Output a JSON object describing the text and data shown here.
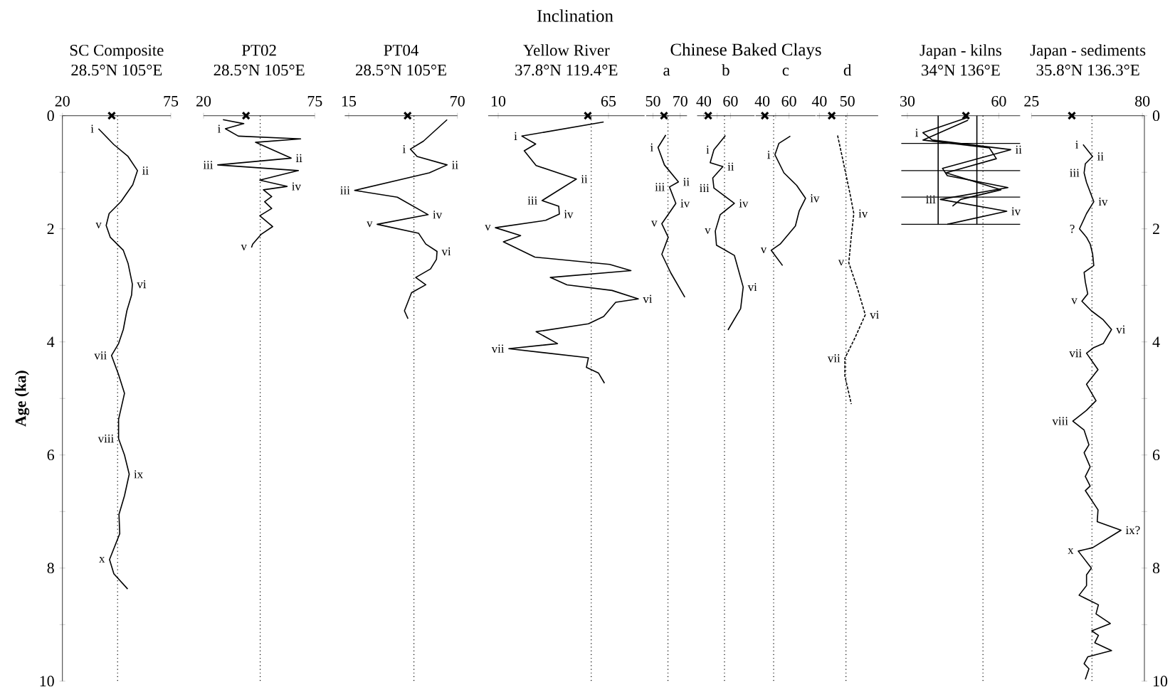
{
  "chart_data": [
    {
      "type": "line",
      "orientation": "horizontal",
      "title": "SC Composite",
      "subtitle": "28.5°N 105°E",
      "ylabel": "Age (ka)",
      "xlim": [
        20,
        75
      ],
      "xticks": [
        20,
        75
      ],
      "ylim": [
        10,
        0
      ],
      "yticks": [
        0,
        {
          "value": 1,
          "label": null
        },
        2,
        {
          "value": 3,
          "label": null
        },
        4,
        {
          "value": 5,
          "label": null
        },
        6,
        {
          "value": 7,
          "label": null
        },
        8,
        {
          "value": 9,
          "label": null
        },
        10
      ],
      "ref_lines": [
        {
          "axis": "x",
          "value": 48,
          "line_style": "dotted"
        }
      ],
      "annotations": [
        "Inclination",
        {
          "text": "i",
          "x": 38.3,
          "y": 0.23
        },
        {
          "text": "ii",
          "x": 58.1,
          "y": 0.97
        },
        {
          "text": "v",
          "x": 42.2,
          "y": 1.94
        },
        {
          "text": "vi",
          "x": 55.5,
          "y": 2.98
        },
        {
          "text": "vii",
          "x": 44.9,
          "y": 4.24
        },
        {
          "text": "viii",
          "x": 48.5,
          "y": 5.71
        },
        {
          "text": "ix",
          "x": 53.9,
          "y": 6.34
        },
        {
          "text": "x",
          "x": 43.9,
          "y": 7.85
        }
      ],
      "series": [
        {
          "color": "#000000",
          "x": [
            0.23,
            0.51,
            0.72,
            0.97,
            1.22,
            1.52,
            1.73,
            1.94,
            2.15,
            2.38,
            2.61,
            2.98,
            3.17,
            3.45,
            3.78,
            4.03,
            4.24,
            4.58,
            4.91,
            5.37,
            5.71,
            6.0,
            6.34,
            6.72,
            7.05,
            7.39,
            7.85,
            8.1,
            8.37
          ],
          "values": [
            38.3,
            46.1,
            53.3,
            58.1,
            55.7,
            49.7,
            43.7,
            42.2,
            44.3,
            50.9,
            53.3,
            55.5,
            55.1,
            52.7,
            50.9,
            48.5,
            44.9,
            48.5,
            51.5,
            48.5,
            48.5,
            51.5,
            53.9,
            51.5,
            48.7,
            49.1,
            43.9,
            46.1,
            53.1
          ]
        },
        {
          "type": "scatter",
          "marker": "cross",
          "color": "#000000",
          "x": [
            0
          ],
          "values": [
            45
          ]
        }
      ]
    },
    {
      "type": "line",
      "orientation": "horizontal",
      "title": "PT02",
      "subtitle": "28.5°N 105°E",
      "xlim": [
        20,
        75
      ],
      "xticks": [
        20,
        75
      ],
      "ylim": [
        10,
        0
      ],
      "tick_labels": "x",
      "ref_lines": [
        {
          "axis": "x",
          "value": 48,
          "line_style": "dotted"
        }
      ],
      "annotations": [
        {
          "text": "i",
          "x": 30.8,
          "y": 0.23
        },
        {
          "text": "ii",
          "x": 63.3,
          "y": 0.75
        },
        {
          "text": "iii",
          "x": 27.0,
          "y": 0.87
        },
        {
          "text": "iv",
          "x": 61.3,
          "y": 1.25
        },
        {
          "text": "v",
          "x": 43.7,
          "y": 2.33
        }
      ],
      "series": [
        {
          "color": "#000000",
          "x": [
            0.07,
            0.14,
            0.23,
            0.36,
            0.41,
            0.47,
            0.75,
            0.87,
            0.97,
            1.06,
            1.14,
            1.25,
            1.31,
            1.43,
            1.52,
            1.64,
            1.77,
            1.96,
            2.1,
            2.27,
            2.33
          ],
          "values": [
            29.6,
            39.9,
            30.8,
            37.2,
            68.0,
            45.7,
            63.3,
            27.0,
            66.9,
            56.6,
            47.8,
            61.3,
            49.6,
            53.7,
            50.2,
            53.7,
            47.8,
            54.2,
            48.4,
            44.3,
            43.7
          ]
        },
        {
          "type": "scatter",
          "marker": "cross",
          "color": "#000000",
          "x": [
            0
          ],
          "values": [
            41
          ]
        }
      ]
    },
    {
      "type": "line",
      "orientation": "horizontal",
      "title": "PT04",
      "subtitle": "28.5°N 105°E",
      "xlim": [
        13,
        70
      ],
      "xticks": [
        15,
        70
      ],
      "ylim": [
        10,
        0
      ],
      "tick_labels": "x",
      "ref_lines": [
        {
          "axis": "x",
          "value": 48,
          "line_style": "dotted"
        }
      ],
      "annotations": [
        {
          "text": "i",
          "x": 46.2,
          "y": 0.59
        },
        {
          "text": "ii",
          "x": 64.8,
          "y": 0.87
        },
        {
          "text": "iii",
          "x": 18.0,
          "y": 1.32
        },
        {
          "text": "iv",
          "x": 55.2,
          "y": 1.75
        },
        {
          "text": "v",
          "x": 29.4,
          "y": 1.92
        },
        {
          "text": "vi",
          "x": 59.7,
          "y": 2.4
        }
      ],
      "series": [
        {
          "color": "#000000",
          "x": [
            0.07,
            0.45,
            0.59,
            0.72,
            0.87,
            1.01,
            1.32,
            1.44,
            1.75,
            1.92,
            2.08,
            2.27,
            2.4,
            2.54,
            2.71,
            2.86,
            2.99,
            3.13,
            3.45,
            3.59
          ],
          "values": [
            64.8,
            52.8,
            46.2,
            49.6,
            64.8,
            55.8,
            18.0,
            39.6,
            55.2,
            29.4,
            50.4,
            54.0,
            59.7,
            59.4,
            56.4,
            48.9,
            54.0,
            46.8,
            43.2,
            45.0
          ]
        },
        {
          "type": "scatter",
          "marker": "cross",
          "color": "#000000",
          "x": [
            0
          ],
          "values": [
            44.8
          ]
        }
      ]
    },
    {
      "type": "line",
      "orientation": "horizontal",
      "title": "Yellow River",
      "subtitle": "37.8°N 119.4°E",
      "xlim": [
        5,
        83
      ],
      "xticks": [
        10,
        65
      ],
      "ylim": [
        10,
        0
      ],
      "tick_labels": "x",
      "ref_lines": [
        {
          "axis": "x",
          "value": 56.4,
          "line_style": "dotted"
        }
      ],
      "annotations": [
        {
          "text": "i",
          "x": 21.8,
          "y": 0.36
        },
        {
          "text": "ii",
          "x": 49.0,
          "y": 1.12
        },
        {
          "text": "iii",
          "x": 31.9,
          "y": 1.5
        },
        {
          "text": "iv",
          "x": 40.5,
          "y": 1.74
        },
        {
          "text": "v",
          "x": 8.6,
          "y": 1.98
        },
        {
          "text": "vi",
          "x": 79.9,
          "y": 3.24
        },
        {
          "text": "vii",
          "x": 15.3,
          "y": 4.12
        }
      ],
      "series": [
        {
          "color": "#000000",
          "x": [
            0.11,
            0.36,
            0.5,
            0.62,
            0.88,
            1.12,
            1.5,
            1.6,
            1.74,
            1.85,
            1.98,
            2.12,
            2.23,
            2.5,
            2.63,
            2.74,
            2.86,
            2.99,
            3.09,
            3.24,
            3.3,
            3.55,
            3.68,
            3.82,
            4.03,
            4.12,
            4.28,
            4.45,
            4.55,
            4.73
          ],
          "values": [
            62.6,
            21.8,
            28.7,
            23.0,
            28.9,
            49.0,
            31.9,
            40.2,
            40.5,
            33.7,
            8.6,
            21.2,
            12.6,
            28.3,
            65.6,
            76.2,
            36.0,
            44.3,
            66.8,
            79.9,
            68.6,
            62.6,
            55.0,
            28.9,
            39.6,
            15.3,
            55.0,
            54.0,
            60.0,
            63.0
          ]
        },
        {
          "type": "scatter",
          "marker": "cross",
          "color": "#000000",
          "x": [
            0
          ],
          "values": [
            54.7
          ]
        }
      ]
    },
    {
      "type": "line",
      "orientation": "horizontal",
      "title": "a",
      "xlim": [
        45,
        75
      ],
      "xticks": [
        50,
        {
          "value": 60,
          "label": null
        },
        70
      ],
      "ylim": [
        10,
        0
      ],
      "tick_labels": "x",
      "ref_lines": [
        {
          "axis": "x",
          "value": 61,
          "line_style": "dotted"
        }
      ],
      "annotations": [
        "Chinese Baked Clays",
        {
          "text": "i",
          "x": 53.7,
          "y": 0.56
        },
        {
          "text": "ii",
          "x": 68.7,
          "y": 1.17
        },
        {
          "text": "iii",
          "x": 62.1,
          "y": 1.26
        },
        {
          "text": "iv",
          "x": 66.8,
          "y": 1.55
        },
        {
          "text": "v",
          "x": 56.5,
          "y": 1.91
        }
      ],
      "series": [
        {
          "color": "#000000",
          "x": [
            0.34,
            0.56,
            0.87,
            1.17,
            1.26,
            1.55,
            1.91,
            2.15,
            2.45,
            2.78,
            3.21
          ],
          "values": [
            59.4,
            53.7,
            58.4,
            68.7,
            62.1,
            66.8,
            56.5,
            61.2,
            56.5,
            63.1,
            73.4
          ]
        },
        {
          "type": "scatter",
          "marker": "cross",
          "color": "#000000",
          "x": [
            0
          ],
          "values": [
            58.1
          ]
        }
      ]
    },
    {
      "type": "line",
      "orientation": "horizontal",
      "title": "b",
      "xlim": [
        35,
        78
      ],
      "xticks": [
        40,
        {
          "value": 50,
          "label": null
        },
        60
      ],
      "ylim": [
        10,
        0
      ],
      "tick_labels": "x",
      "ref_lines": [
        {
          "axis": "x",
          "value": 55.5,
          "line_style": "dotted"
        }
      ],
      "annotations": [
        {
          "text": "i",
          "x": 47.6,
          "y": 0.6
        },
        {
          "text": "ii",
          "x": 54.3,
          "y": 0.9
        },
        {
          "text": "iii",
          "x": 47.6,
          "y": 1.28
        },
        {
          "text": "iv",
          "x": 62.9,
          "y": 1.55
        },
        {
          "text": "v",
          "x": 48.6,
          "y": 2.04
        },
        {
          "text": "vi",
          "x": 69.5,
          "y": 3.03
        }
      ],
      "series": [
        {
          "color": "#000000",
          "x": [
            0.35,
            0.6,
            0.83,
            0.9,
            1.1,
            1.28,
            1.55,
            1.75,
            2.04,
            2.29,
            2.47,
            3.03,
            3.41,
            3.79
          ],
          "values": [
            56.2,
            47.6,
            44.8,
            54.3,
            46.7,
            47.6,
            62.9,
            52.3,
            48.6,
            49.5,
            62.9,
            69.5,
            67.6,
            58.1
          ]
        },
        {
          "type": "scatter",
          "marker": "cross",
          "color": "#000000",
          "x": [
            0
          ],
          "values": [
            43.3
          ]
        }
      ]
    },
    {
      "type": "line",
      "orientation": "horizontal",
      "title": "c",
      "xlim": [
        35,
        80
      ],
      "xticks": [
        40,
        {
          "value": 50,
          "label": null
        },
        60
      ],
      "ylim": [
        10,
        0
      ],
      "tick_labels": "x",
      "ref_lines": [
        {
          "axis": "x",
          "value": 48.5,
          "line_style": "dotted"
        }
      ],
      "annotations": [
        {
          "text": "i",
          "x": 49.5,
          "y": 0.69
        },
        {
          "text": "iv",
          "x": 72.4,
          "y": 1.46
        },
        {
          "text": "v",
          "x": 46.7,
          "y": 2.38
        }
      ],
      "series": [
        {
          "color": "#000000",
          "x": [
            0.36,
            0.49,
            0.69,
            1.01,
            1.23,
            1.46,
            1.68,
            1.95,
            2.27,
            2.38,
            2.65
          ],
          "values": [
            61.0,
            52.4,
            49.5,
            56.2,
            65.7,
            72.4,
            67.7,
            64.8,
            53.4,
            46.7,
            55.2
          ]
        },
        {
          "type": "scatter",
          "marker": "cross",
          "color": "#000000",
          "x": [
            0
          ],
          "values": [
            41.9
          ]
        }
      ]
    },
    {
      "type": "line",
      "orientation": "horizontal",
      "title": "d",
      "xlim": [
        39,
        61
      ],
      "xticks": [
        40,
        {
          "value": 45,
          "label": null
        },
        50
      ],
      "ylim": [
        10,
        0
      ],
      "tick_labels": "x",
      "ref_lines": [
        {
          "axis": "x",
          "value": 49.5,
          "line_style": "dotted"
        }
      ],
      "annotations": [
        {
          "text": "iv",
          "x": 52.3,
          "y": 1.73
        },
        {
          "text": "v",
          "x": 50.5,
          "y": 2.6
        },
        {
          "text": "vi",
          "x": 56.4,
          "y": 3.52
        },
        {
          "text": "vii",
          "x": 49.1,
          "y": 4.29
        }
      ],
      "series": [
        {
          "line_style": "dashed",
          "color": "#000000",
          "x": [
            0.35,
            0.74,
            1.37,
            1.73,
            2.13,
            2.6,
            3.07,
            3.52,
            3.93,
            4.29,
            4.6,
            5.1
          ],
          "values": [
            46.5,
            48.2,
            50.9,
            52.3,
            51.4,
            50.5,
            53.7,
            56.4,
            52.7,
            49.1,
            49.1,
            51.4
          ]
        },
        {
          "type": "scatter",
          "marker": "cross",
          "color": "#000000",
          "x": [
            0
          ],
          "values": [
            44.4
          ]
        }
      ]
    },
    {
      "type": "line",
      "orientation": "horizontal",
      "title": "Japan - kilns",
      "subtitle": "34°N 136°E",
      "xlim": [
        28,
        67
      ],
      "xticks": [
        30,
        60
      ],
      "ylim": [
        10,
        0
      ],
      "tick_labels": "x",
      "ref_lines": [
        {
          "axis": "x",
          "value": 54.8,
          "line_style": "dotted"
        },
        {
          "axis": "y",
          "value": 0.49,
          "line_style": "solid"
        },
        {
          "axis": "y",
          "value": 0.97,
          "line_style": "solid"
        },
        {
          "axis": "y",
          "value": 1.44,
          "line_style": "solid"
        },
        {
          "axis": "y",
          "value": 1.92,
          "line_style": "solid"
        }
      ],
      "annotations": [
        {
          "text": "i",
          "x": 35.1,
          "y": 0.3
        },
        {
          "text": "ii",
          "x": 63.9,
          "y": 0.6
        },
        {
          "text": "iii",
          "x": 40.8,
          "y": 1.48
        },
        {
          "text": "iv",
          "x": 62.6,
          "y": 1.69
        }
      ],
      "series": [
        {
          "color": "#000000",
          "x": [
            0.03,
            0.3,
            0.43,
            0.6,
            0.93,
            1.06,
            1.27,
            1.48,
            1.69,
            1.92
          ],
          "values": [
            49.9,
            35.1,
            38.2,
            63.9,
            41.5,
            43.1,
            63.0,
            40.8,
            62.6,
            43.1
          ]
        },
        {
          "color": "#000000",
          "x": [
            0.08,
            0.43,
            0.57,
            0.76,
            1.01,
            1.31,
            1.48,
            1.6
          ],
          "values": [
            49.9,
            35.1,
            56.9,
            59.2,
            42.7,
            60.7,
            47.5,
            44.8
          ]
        },
        {
          "color": "#000000",
          "x": [
            0,
            1.92
          ],
          "values": [
            40.1,
            40.1
          ]
        },
        {
          "color": "#000000",
          "x": [
            0,
            1.92
          ],
          "values": [
            52.8,
            52.8
          ]
        },
        {
          "type": "scatter",
          "marker": "cross",
          "color": "#000000",
          "x": [
            0
          ],
          "values": [
            49.2
          ]
        }
      ]
    },
    {
      "type": "line",
      "orientation": "horizontal",
      "title": "Japan - sediments",
      "subtitle": "35.8°N 136.3°E",
      "xlim": [
        25,
        81
      ],
      "xticks": [
        25,
        80
      ],
      "ylim": [
        10,
        0
      ],
      "yticks": [
        0,
        {
          "value": 1,
          "label": null
        },
        2,
        {
          "value": 3,
          "label": null
        },
        4,
        {
          "value": 5,
          "label": null
        },
        6,
        {
          "value": 7,
          "label": null
        },
        8,
        {
          "value": 9,
          "label": null
        },
        10
      ],
      "ref_lines": [
        {
          "axis": "x",
          "value": 55,
          "line_style": "dotted"
        }
      ],
      "annotations": [
        {
          "text": "i",
          "x": 50.6,
          "y": 0.51
        },
        {
          "text": "ii",
          "x": 55.3,
          "y": 0.72
        },
        {
          "text": "iii",
          "x": 51.1,
          "y": 1.01
        },
        {
          "text": "iv",
          "x": 55.9,
          "y": 1.52
        },
        {
          "text": "?",
          "x": 48.8,
          "y": 2.0
        },
        {
          "text": "v",
          "x": 50.0,
          "y": 3.28
        },
        {
          "text": "vi",
          "x": 64.7,
          "y": 3.78
        },
        {
          "text": "vii",
          "x": 52.3,
          "y": 4.2
        },
        {
          "text": "viii",
          "x": 45.5,
          "y": 5.4
        },
        {
          "text": "ix?",
          "x": 69.4,
          "y": 7.33
        },
        {
          "text": "x",
          "x": 48.2,
          "y": 7.7
        }
      ],
      "series": [
        {
          "color": "#000000",
          "x": [
            0.51,
            0.72,
            0.85,
            1.01,
            1.18,
            1.52,
            1.73,
            2.0,
            2.15,
            2.27,
            2.44,
            2.65,
            2.77,
            2.94,
            3.15,
            3.28,
            3.45,
            3.61,
            3.78,
            4.03,
            4.1,
            4.2,
            4.49,
            4.75,
            5.04,
            5.21,
            5.4,
            5.56,
            5.82,
            5.96,
            6.21,
            6.38,
            6.55,
            6.63,
            6.97,
            7.18,
            7.33,
            7.64,
            7.7,
            8.0,
            8.12,
            8.31,
            8.48,
            8.65,
            8.81,
            8.98,
            9.11,
            9.19,
            9.32,
            9.46,
            9.57,
            9.69,
            9.78,
            9.97
          ],
          "values": [
            50.6,
            55.3,
            51.7,
            51.1,
            52.3,
            55.9,
            52.3,
            48.8,
            52.3,
            54.1,
            55.3,
            55.9,
            51.1,
            51.7,
            52.9,
            50.0,
            54.7,
            60.6,
            64.7,
            60.6,
            55.9,
            52.3,
            58.0,
            52.3,
            57.0,
            52.3,
            45.5,
            51.1,
            53.5,
            51.1,
            54.1,
            51.7,
            54.1,
            51.7,
            58.0,
            57.6,
            69.4,
            55.3,
            48.2,
            54.7,
            52.3,
            52.3,
            48.6,
            58.2,
            57.0,
            64.1,
            54.9,
            58.2,
            56.4,
            64.7,
            52.9,
            51.1,
            53.5,
            51.7
          ]
        },
        {
          "type": "scatter",
          "marker": "cross",
          "color": "#000000",
          "x": [
            0
          ],
          "values": [
            45
          ]
        }
      ]
    }
  ]
}
